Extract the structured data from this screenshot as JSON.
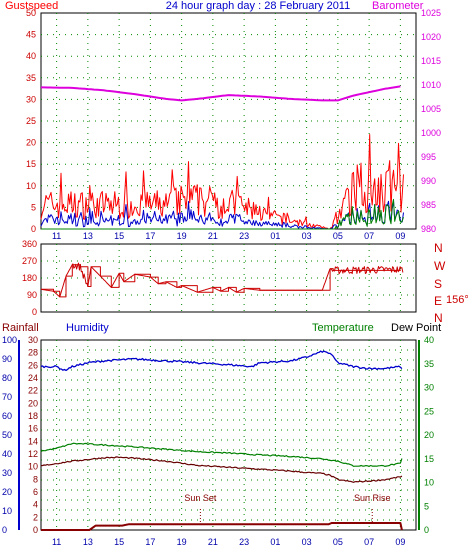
{
  "title": "24 hour graph day : 28 February 2011",
  "colors": {
    "gust": "#ff0000",
    "wind": "#0000cc",
    "speed_green": "#008000",
    "barometer": "#dd00dd",
    "humidity": "#0000cc",
    "temperature": "#008000",
    "dewpoint": "#660000",
    "rain": "#880000",
    "direction": "#cc0000",
    "grid": "#008800",
    "axis_text_dir": "#cc0000"
  },
  "x_ticks": [
    "11",
    "13",
    "15",
    "17",
    "19",
    "21",
    "23",
    "01",
    "03",
    "05",
    "07",
    "09"
  ],
  "chart_data": [
    {
      "type": "line",
      "name": "wind-barometer",
      "title": "24 hour graph day : 28 February 2011",
      "left_axis_label": "Gustspeed",
      "right_axis_label": "Barometer",
      "ylim": [
        0,
        50
      ],
      "y2lim": [
        980,
        1025
      ],
      "yticks": [
        "0",
        "5",
        "10",
        "15",
        "20",
        "25",
        "30",
        "35",
        "40",
        "45",
        "50"
      ],
      "y2ticks": [
        "980",
        "985",
        "990",
        "995",
        "1000",
        "1005",
        "1010",
        "1015",
        "1020",
        "1025"
      ],
      "hours": [
        10,
        12,
        14,
        16,
        18,
        19,
        20,
        22,
        24,
        26,
        28,
        29,
        30,
        32,
        33
      ],
      "barometer": [
        1009.5,
        1009.4,
        1008.9,
        1008.1,
        1007.1,
        1006.8,
        1007.1,
        1007.9,
        1007.6,
        1007.1,
        1006.8,
        1006.8,
        1007.8,
        1009.2,
        1009.7
      ],
      "gust_profile": {
        "hours": [
          10,
          18,
          19.5,
          22.5,
          23.5,
          24.5,
          28.5,
          30,
          32,
          33
        ],
        "max": [
          9,
          9,
          11,
          9,
          7,
          5,
          0,
          14,
          16,
          14
        ]
      }
    },
    {
      "type": "line",
      "name": "wind-direction",
      "ylim": [
        0,
        360
      ],
      "yticks": [
        "0",
        "90",
        "180",
        "270",
        "360"
      ],
      "compass": [
        "N",
        "W",
        "S",
        "E",
        "N"
      ],
      "current": "156°",
      "hours": [
        10,
        10.8,
        11.2,
        11.6,
        12,
        12.5,
        13,
        13.2,
        13.8,
        14.5,
        15,
        15.3,
        16,
        17,
        17.5,
        18,
        18.7,
        19,
        20,
        21,
        21.5,
        22,
        22.5,
        23,
        24,
        26,
        27,
        28,
        28.5,
        28.7,
        33
      ],
      "values": [
        120,
        110,
        80,
        190,
        250,
        240,
        135,
        240,
        190,
        130,
        205,
        160,
        200,
        185,
        150,
        160,
        130,
        140,
        105,
        130,
        110,
        130,
        105,
        125,
        115,
        115,
        115,
        115,
        230,
        220,
        225
      ]
    },
    {
      "type": "line",
      "name": "humidity-temperature",
      "left_axis_label": "Rainfall",
      "humidity_label": "Humidity",
      "temperature_label": "Temperature",
      "right_axis_label": "Dew Point",
      "sunset_label": "Sun Set",
      "sunrise_label": "Sun Rise",
      "humidity_ticks": [
        "0",
        "10",
        "20",
        "30",
        "40",
        "50",
        "60",
        "70",
        "80",
        "90",
        "100"
      ],
      "rain_ticks": [
        "0",
        "2",
        "4",
        "6",
        "8",
        "10",
        "12",
        "14",
        "16",
        "18",
        "20",
        "22",
        "24",
        "26",
        "28",
        "30"
      ],
      "temp_ticks": [
        "0",
        "5",
        "10",
        "15",
        "20",
        "25",
        "30",
        "35",
        "40"
      ],
      "humidity": {
        "ylim": [
          0,
          100
        ],
        "hours": [
          10,
          11,
          11.5,
          12,
          13,
          14,
          16,
          18,
          20,
          22,
          23.5,
          24,
          26,
          27,
          28,
          28.5,
          29,
          30,
          31,
          32,
          33,
          33.2
        ],
        "values": [
          86,
          86,
          84,
          86,
          88,
          89,
          90,
          89,
          88,
          87,
          86,
          88,
          89,
          91,
          94,
          93,
          88,
          86,
          85,
          85,
          86,
          83
        ]
      },
      "temperature": {
        "ylim": [
          0,
          40
        ],
        "hours": [
          10,
          11,
          12,
          13,
          14,
          16,
          18,
          20,
          22,
          24,
          26,
          28,
          29,
          30,
          32,
          33,
          33.2
        ],
        "values": [
          16.6,
          17.2,
          18.2,
          18.1,
          17.9,
          17.5,
          17.0,
          16.5,
          16.2,
          15.8,
          15.5,
          15.0,
          14.5,
          13.5,
          13.5,
          14.0,
          16.0
        ]
      },
      "dewpoint": {
        "ylim": [
          0,
          40
        ],
        "hours": [
          10,
          12,
          14,
          15,
          16,
          18,
          20,
          22,
          24,
          26,
          27,
          28,
          28.5,
          29,
          30,
          31,
          32,
          33,
          33.2
        ],
        "values": [
          13.5,
          14.5,
          15.2,
          15.3,
          15.1,
          14.5,
          13.6,
          13.2,
          12.8,
          12.4,
          12.1,
          11.9,
          11.5,
          10.6,
          10.1,
          10.3,
          10.6,
          11.2,
          11.5
        ]
      },
      "rainfall": {
        "ylim": [
          0,
          30
        ],
        "hours": [
          10,
          13.1,
          13.5,
          15.2,
          15.6,
          28.4,
          28.6,
          33.0,
          33.1
        ],
        "values": [
          0,
          0,
          0.7,
          0.7,
          0.9,
          0.9,
          1.1,
          1.1,
          0
        ]
      },
      "sunset_hour": 20.2,
      "sunrise_hour": 31.2
    }
  ]
}
